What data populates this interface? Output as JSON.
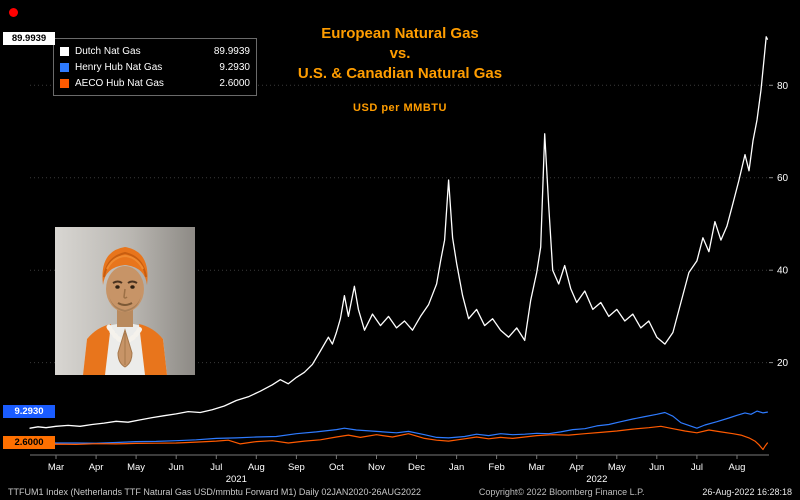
{
  "title": {
    "line1": "European Natural Gas",
    "line2": "vs.",
    "line3": "U.S. & Canadian Natural Gas",
    "subtitle": "USD per MMBTU"
  },
  "legend": {
    "items": [
      {
        "label": "Dutch Nat Gas",
        "value": "89.9939",
        "color": "#ffffff",
        "box_bg": "#ffffff",
        "box_fg": "#000000"
      },
      {
        "label": "Henry Hub Nat Gas",
        "value": "9.2930",
        "color": "#2e7bff",
        "box_bg": "#1a5cff",
        "box_fg": "#ffffff"
      },
      {
        "label": "AECO Hub Nat Gas",
        "value": "2.6000",
        "color": "#ff5a00",
        "box_bg": "#ff7000",
        "box_fg": "#000000"
      }
    ]
  },
  "footer": {
    "left": "TTFUM1 Index (Netherlands TTF Natural Gas USD/mmbtu Forward M1)  Daily 02JAN2020-26AUG2022",
    "center": "Copyright© 2022 Bloomberg Finance L.P.",
    "right": "26-Aug-2022 16:28:18"
  },
  "chart_data": {
    "type": "line",
    "title": "European Natural Gas vs. U.S. & Canadian Natural Gas",
    "ylabel": "USD per MMBTU",
    "x_unit": "months, 0 = Mar 2021",
    "x_range": [
      -0.65,
      17.8
    ],
    "y_range": [
      0,
      95
    ],
    "y_ticks": [
      20,
      40,
      60,
      80
    ],
    "grid": "horizontal-dotted",
    "legend_position": "top-left",
    "x_ticks": [
      {
        "x": 0,
        "label": "Mar"
      },
      {
        "x": 1,
        "label": "Apr"
      },
      {
        "x": 2,
        "label": "May"
      },
      {
        "x": 3,
        "label": "Jun"
      },
      {
        "x": 4,
        "label": "Jul"
      },
      {
        "x": 5,
        "label": "Aug"
      },
      {
        "x": 6,
        "label": "Sep"
      },
      {
        "x": 7,
        "label": "Oct"
      },
      {
        "x": 8,
        "label": "Nov"
      },
      {
        "x": 9,
        "label": "Dec"
      },
      {
        "x": 10,
        "label": "Jan"
      },
      {
        "x": 11,
        "label": "Feb"
      },
      {
        "x": 12,
        "label": "Mar"
      },
      {
        "x": 13,
        "label": "Apr"
      },
      {
        "x": 14,
        "label": "May"
      },
      {
        "x": 15,
        "label": "Jun"
      },
      {
        "x": 16,
        "label": "Jul"
      },
      {
        "x": 17,
        "label": "Aug"
      }
    ],
    "year_labels": [
      {
        "x": 4.5,
        "label": "2021"
      },
      {
        "x": 13.5,
        "label": "2022"
      }
    ],
    "series": [
      {
        "name": "Dutch Nat Gas",
        "color": "#ffffff",
        "width": 1.3,
        "last": 89.9939,
        "points": [
          [
            -0.65,
            5.8
          ],
          [
            -0.45,
            6.1
          ],
          [
            -0.25,
            5.9
          ],
          [
            0,
            6.2
          ],
          [
            0.3,
            6.4
          ],
          [
            0.6,
            6.2
          ],
          [
            0.9,
            6.6
          ],
          [
            1.2,
            6.9
          ],
          [
            1.5,
            7.3
          ],
          [
            1.8,
            7.1
          ],
          [
            2.1,
            7.6
          ],
          [
            2.4,
            8.1
          ],
          [
            2.7,
            8.5
          ],
          [
            3,
            8.9
          ],
          [
            3.3,
            9.4
          ],
          [
            3.6,
            9.2
          ],
          [
            3.9,
            9.8
          ],
          [
            4.2,
            10.6
          ],
          [
            4.5,
            11.8
          ],
          [
            4.8,
            12.6
          ],
          [
            5.1,
            13.8
          ],
          [
            5.4,
            15.2
          ],
          [
            5.6,
            16.3
          ],
          [
            5.8,
            15.4
          ],
          [
            6,
            16.8
          ],
          [
            6.2,
            17.9
          ],
          [
            6.4,
            19.6
          ],
          [
            6.6,
            22.5
          ],
          [
            6.8,
            25.5
          ],
          [
            6.9,
            24
          ],
          [
            7,
            26.5
          ],
          [
            7.1,
            29.5
          ],
          [
            7.2,
            34.5
          ],
          [
            7.3,
            30
          ],
          [
            7.45,
            36.5
          ],
          [
            7.55,
            31.5
          ],
          [
            7.7,
            27
          ],
          [
            7.9,
            30.5
          ],
          [
            8.1,
            28
          ],
          [
            8.3,
            30
          ],
          [
            8.5,
            27.5
          ],
          [
            8.7,
            29
          ],
          [
            8.9,
            27
          ],
          [
            9.1,
            30
          ],
          [
            9.3,
            32.5
          ],
          [
            9.5,
            37
          ],
          [
            9.6,
            42
          ],
          [
            9.7,
            46.5
          ],
          [
            9.8,
            59.5
          ],
          [
            9.9,
            47
          ],
          [
            10,
            41.5
          ],
          [
            10.15,
            34.5
          ],
          [
            10.3,
            29.5
          ],
          [
            10.5,
            31.5
          ],
          [
            10.7,
            28
          ],
          [
            10.9,
            29.5
          ],
          [
            11.1,
            27
          ],
          [
            11.3,
            25.5
          ],
          [
            11.5,
            27.5
          ],
          [
            11.7,
            24.8
          ],
          [
            11.85,
            33.5
          ],
          [
            12,
            39.5
          ],
          [
            12.1,
            45
          ],
          [
            12.2,
            69.5
          ],
          [
            12.3,
            54
          ],
          [
            12.4,
            40
          ],
          [
            12.55,
            37
          ],
          [
            12.7,
            41
          ],
          [
            12.85,
            36
          ],
          [
            13,
            33
          ],
          [
            13.2,
            35.5
          ],
          [
            13.4,
            31.5
          ],
          [
            13.6,
            33
          ],
          [
            13.8,
            30
          ],
          [
            14,
            31.5
          ],
          [
            14.2,
            29
          ],
          [
            14.4,
            30.5
          ],
          [
            14.6,
            27.5
          ],
          [
            14.8,
            29
          ],
          [
            15,
            25.5
          ],
          [
            15.2,
            24
          ],
          [
            15.4,
            26.5
          ],
          [
            15.6,
            33
          ],
          [
            15.8,
            39.5
          ],
          [
            16,
            42
          ],
          [
            16.15,
            47
          ],
          [
            16.3,
            44
          ],
          [
            16.45,
            50.5
          ],
          [
            16.6,
            46.5
          ],
          [
            16.75,
            49.5
          ],
          [
            16.9,
            54.5
          ],
          [
            17.05,
            59.5
          ],
          [
            17.2,
            65
          ],
          [
            17.3,
            61.5
          ],
          [
            17.4,
            68
          ],
          [
            17.5,
            72.5
          ],
          [
            17.6,
            79
          ],
          [
            17.68,
            86
          ],
          [
            17.73,
            90.5
          ],
          [
            17.76,
            89.99
          ]
        ]
      },
      {
        "name": "Henry Hub Nat Gas",
        "color": "#2e7bff",
        "width": 1.2,
        "last": 9.293,
        "points": [
          [
            -0.65,
            2.8
          ],
          [
            0,
            2.6
          ],
          [
            0.5,
            2.6
          ],
          [
            1,
            2.55
          ],
          [
            1.5,
            2.7
          ],
          [
            2,
            2.9
          ],
          [
            2.5,
            2.95
          ],
          [
            3,
            3.1
          ],
          [
            3.5,
            3.3
          ],
          [
            4,
            3.6
          ],
          [
            4.5,
            3.7
          ],
          [
            5,
            3.9
          ],
          [
            5.5,
            4
          ],
          [
            6,
            4.6
          ],
          [
            6.5,
            5
          ],
          [
            7,
            5.5
          ],
          [
            7.2,
            5.8
          ],
          [
            7.5,
            5.4
          ],
          [
            8,
            5.1
          ],
          [
            8.5,
            4.8
          ],
          [
            8.8,
            5.1
          ],
          [
            9.2,
            4.4
          ],
          [
            9.5,
            3.8
          ],
          [
            9.8,
            3.7
          ],
          [
            10.2,
            4
          ],
          [
            10.5,
            4.5
          ],
          [
            10.8,
            4.2
          ],
          [
            11.1,
            4.6
          ],
          [
            11.4,
            4.4
          ],
          [
            11.7,
            4.5
          ],
          [
            12,
            4.7
          ],
          [
            12.3,
            4.6
          ],
          [
            12.6,
            5
          ],
          [
            12.9,
            5.5
          ],
          [
            13.2,
            5.7
          ],
          [
            13.5,
            6.3
          ],
          [
            13.8,
            6.6
          ],
          [
            14.1,
            7.2
          ],
          [
            14.4,
            7.8
          ],
          [
            14.7,
            8.3
          ],
          [
            15,
            8.8
          ],
          [
            15.2,
            9.2
          ],
          [
            15.4,
            8.4
          ],
          [
            15.6,
            7
          ],
          [
            15.8,
            6.4
          ],
          [
            16,
            5.8
          ],
          [
            16.2,
            6.5
          ],
          [
            16.5,
            7.2
          ],
          [
            16.8,
            8
          ],
          [
            17,
            8.6
          ],
          [
            17.2,
            9.1
          ],
          [
            17.35,
            8.8
          ],
          [
            17.5,
            9.5
          ],
          [
            17.65,
            9.1
          ],
          [
            17.76,
            9.29
          ]
        ]
      },
      {
        "name": "AECO Hub Nat Gas",
        "color": "#ff5a00",
        "width": 1.2,
        "last": 2.6,
        "points": [
          [
            -0.65,
            2.3
          ],
          [
            0,
            2.35
          ],
          [
            0.5,
            2.3
          ],
          [
            1,
            2.45
          ],
          [
            1.5,
            2.4
          ],
          [
            2,
            2.5
          ],
          [
            2.5,
            2.55
          ],
          [
            3,
            2.6
          ],
          [
            3.5,
            2.8
          ],
          [
            4,
            3
          ],
          [
            4.3,
            3.2
          ],
          [
            4.6,
            2.4
          ],
          [
            5,
            2.9
          ],
          [
            5.4,
            3.1
          ],
          [
            5.8,
            2.6
          ],
          [
            6.2,
            3
          ],
          [
            6.6,
            3.3
          ],
          [
            7,
            3.9
          ],
          [
            7.3,
            4.3
          ],
          [
            7.6,
            3.8
          ],
          [
            8,
            4.4
          ],
          [
            8.4,
            3.9
          ],
          [
            8.8,
            4.6
          ],
          [
            9.2,
            3.6
          ],
          [
            9.5,
            3.2
          ],
          [
            9.8,
            3
          ],
          [
            10.2,
            3.5
          ],
          [
            10.5,
            3.9
          ],
          [
            10.8,
            3.5
          ],
          [
            11.1,
            3.8
          ],
          [
            11.4,
            3.6
          ],
          [
            11.7,
            3.9
          ],
          [
            12,
            4.2
          ],
          [
            12.4,
            4.4
          ],
          [
            12.8,
            4.3
          ],
          [
            13.2,
            4.6
          ],
          [
            13.6,
            4.9
          ],
          [
            14,
            5.2
          ],
          [
            14.4,
            5.6
          ],
          [
            14.8,
            5.9
          ],
          [
            15.1,
            6.2
          ],
          [
            15.4,
            5.7
          ],
          [
            15.7,
            5.2
          ],
          [
            16,
            4.8
          ],
          [
            16.3,
            5.4
          ],
          [
            16.6,
            5
          ],
          [
            16.9,
            4.6
          ],
          [
            17.1,
            4.3
          ],
          [
            17.3,
            3.7
          ],
          [
            17.45,
            3
          ],
          [
            17.55,
            2.2
          ],
          [
            17.65,
            1.2
          ],
          [
            17.7,
            1.9
          ],
          [
            17.76,
            2.6
          ]
        ]
      }
    ]
  }
}
